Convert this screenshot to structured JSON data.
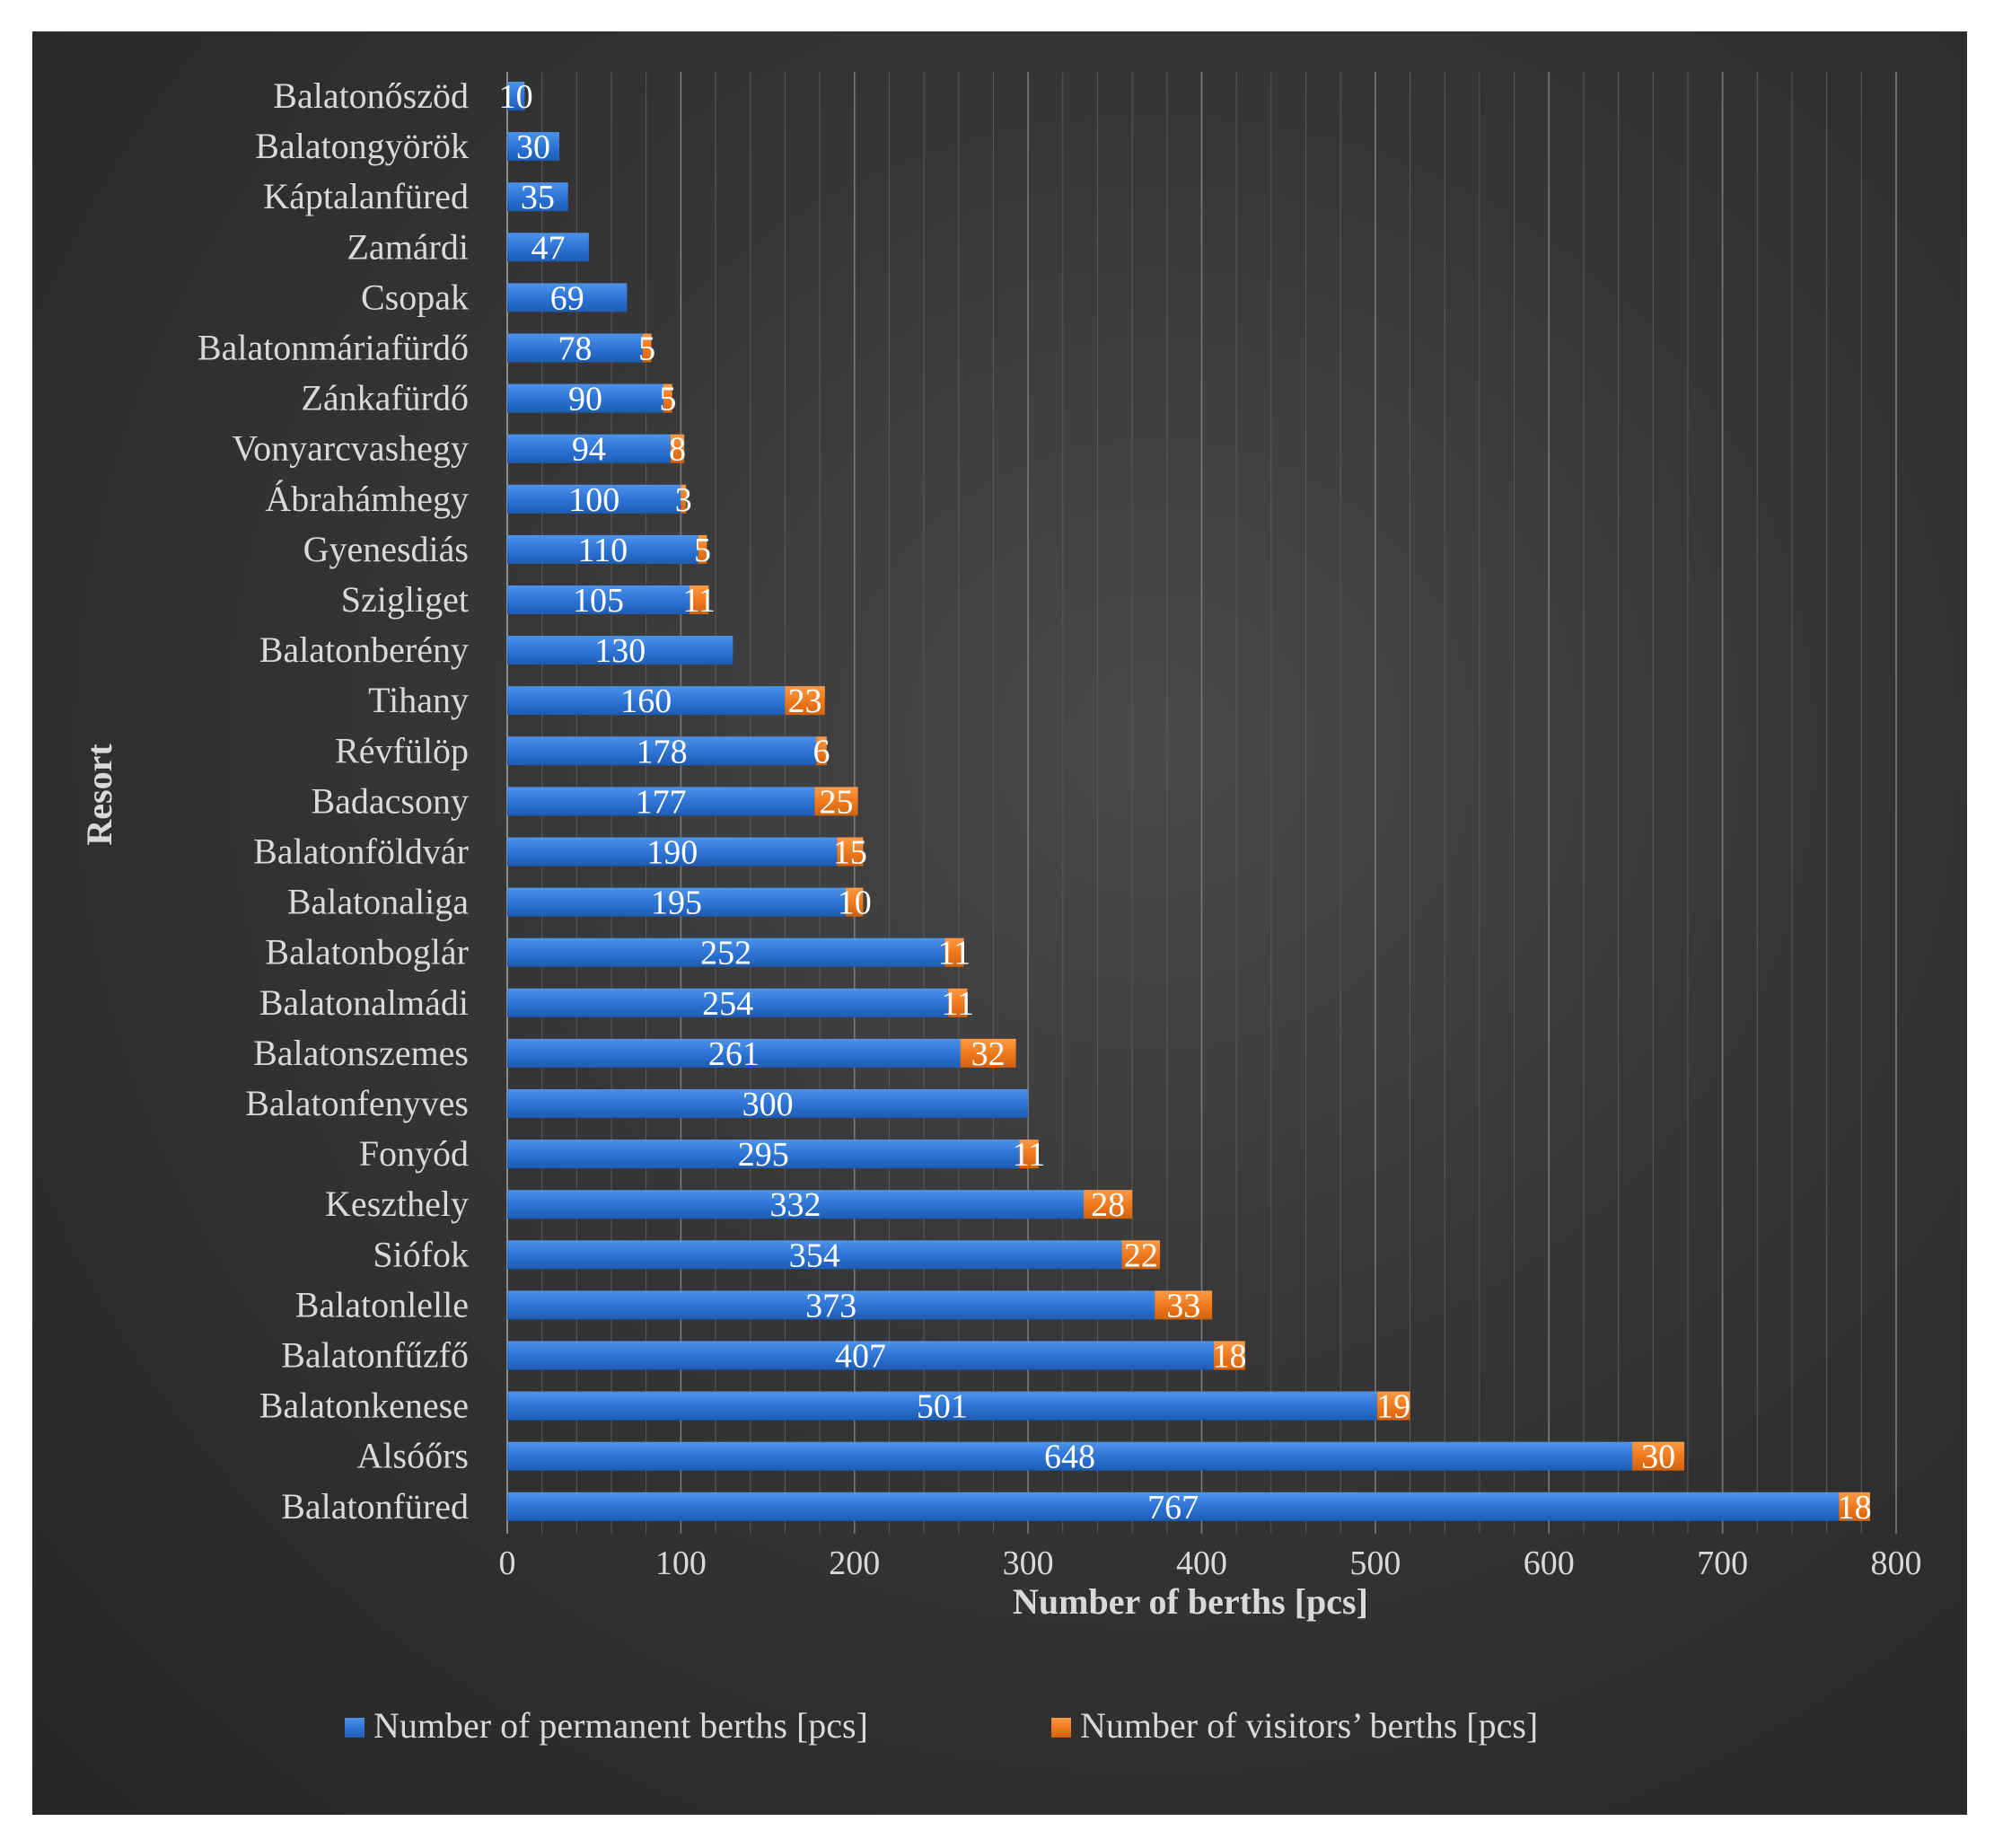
{
  "chart_data": {
    "type": "bar",
    "orientation": "horizontal",
    "stacked": true,
    "categories": [
      "Balatonőszöd",
      "Balatongyörök",
      "Káptalanfüred",
      "Zamárdi",
      "Csopak",
      "Balatonmáriafürdő",
      "Zánkafürdő",
      "Vonyarcvashegy",
      "Ábrahámhegy",
      "Gyenesdiás",
      "Szigliget",
      "Balatonberény",
      "Tihany",
      "Révfülöp",
      "Badacsony",
      "Balatonföldvár",
      "Balatonaliga",
      "Balatonboglár",
      "Balatonalmádi",
      "Balatonszemes",
      "Balatonfenyves",
      "Fonyód",
      "Keszthely",
      "Siófok",
      "Balatonlelle",
      "Balatonfűzfő",
      "Balatonkenese",
      "Alsóőrs",
      "Balatonfüred"
    ],
    "series": [
      {
        "name": "Number of permanent berths [pcs]",
        "color": "#2e75d6",
        "values": [
          10,
          30,
          35,
          47,
          69,
          78,
          90,
          94,
          100,
          110,
          105,
          130,
          160,
          178,
          177,
          190,
          195,
          252,
          254,
          261,
          300,
          295,
          332,
          354,
          373,
          407,
          501,
          648,
          767
        ]
      },
      {
        "name": "Number of visitors’ berths [pcs]",
        "color": "#f07a1e",
        "values": [
          null,
          null,
          null,
          null,
          null,
          5,
          5,
          8,
          3,
          5,
          11,
          null,
          23,
          6,
          25,
          15,
          10,
          11,
          11,
          32,
          null,
          11,
          28,
          22,
          33,
          18,
          19,
          30,
          18
        ]
      }
    ],
    "xlabel": "Number of berths [pcs]",
    "ylabel": "Resort",
    "xlim": [
      0,
      800
    ],
    "xticks": [
      0,
      100,
      200,
      300,
      400,
      500,
      600,
      700,
      800
    ],
    "grid": "vertical",
    "legend": "bottom"
  }
}
